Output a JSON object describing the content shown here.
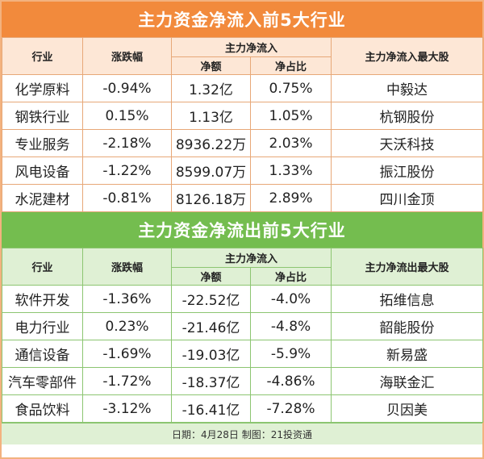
{
  "inflow": {
    "title": "主力资金净流入前5大行业",
    "headers": {
      "industry": "行业",
      "change": "涨跌幅",
      "main_net": "主力净流入",
      "net_amount": "净额",
      "net_ratio": "净占比",
      "top_stock": "主力净流入最大股"
    },
    "rows": [
      {
        "industry": "化学原料",
        "change": "-0.94%",
        "net_amount": "1.32亿",
        "net_ratio": "0.75%",
        "top_stock": "中毅达"
      },
      {
        "industry": "钢铁行业",
        "change": "0.15%",
        "net_amount": "1.13亿",
        "net_ratio": "1.05%",
        "top_stock": "杭钢股份"
      },
      {
        "industry": "专业服务",
        "change": "-2.18%",
        "net_amount": "8936.22万",
        "net_ratio": "2.03%",
        "top_stock": "天沃科技"
      },
      {
        "industry": "风电设备",
        "change": "-1.22%",
        "net_amount": "8599.07万",
        "net_ratio": "1.33%",
        "top_stock": "振江股份"
      },
      {
        "industry": "水泥建材",
        "change": "-0.81%",
        "net_amount": "8126.18万",
        "net_ratio": "2.89%",
        "top_stock": "四川金顶"
      }
    ]
  },
  "outflow": {
    "title": "主力资金净流出前5大行业",
    "headers": {
      "industry": "行业",
      "change": "涨跌幅",
      "main_net": "主力净流入",
      "net_amount": "净额",
      "net_ratio": "净占比",
      "top_stock": "主力净流出最大股"
    },
    "rows": [
      {
        "industry": "软件开发",
        "change": "-1.36%",
        "net_amount": "-22.52亿",
        "net_ratio": "-4.0%",
        "top_stock": "拓维信息"
      },
      {
        "industry": "电力行业",
        "change": "0.23%",
        "net_amount": "-21.46亿",
        "net_ratio": "-4.8%",
        "top_stock": "韶能股份"
      },
      {
        "industry": "通信设备",
        "change": "-1.69%",
        "net_amount": "-19.03亿",
        "net_ratio": "-5.9%",
        "top_stock": "新易盛"
      },
      {
        "industry": "汽车零部件",
        "change": "-1.72%",
        "net_amount": "-18.37亿",
        "net_ratio": "-4.86%",
        "top_stock": "海联金汇"
      },
      {
        "industry": "食品饮料",
        "change": "-3.12%",
        "net_amount": "-16.41亿",
        "net_ratio": "-7.28%",
        "top_stock": "贝因美"
      }
    ]
  },
  "footer": "日期：4月28日 制图：21投资通"
}
